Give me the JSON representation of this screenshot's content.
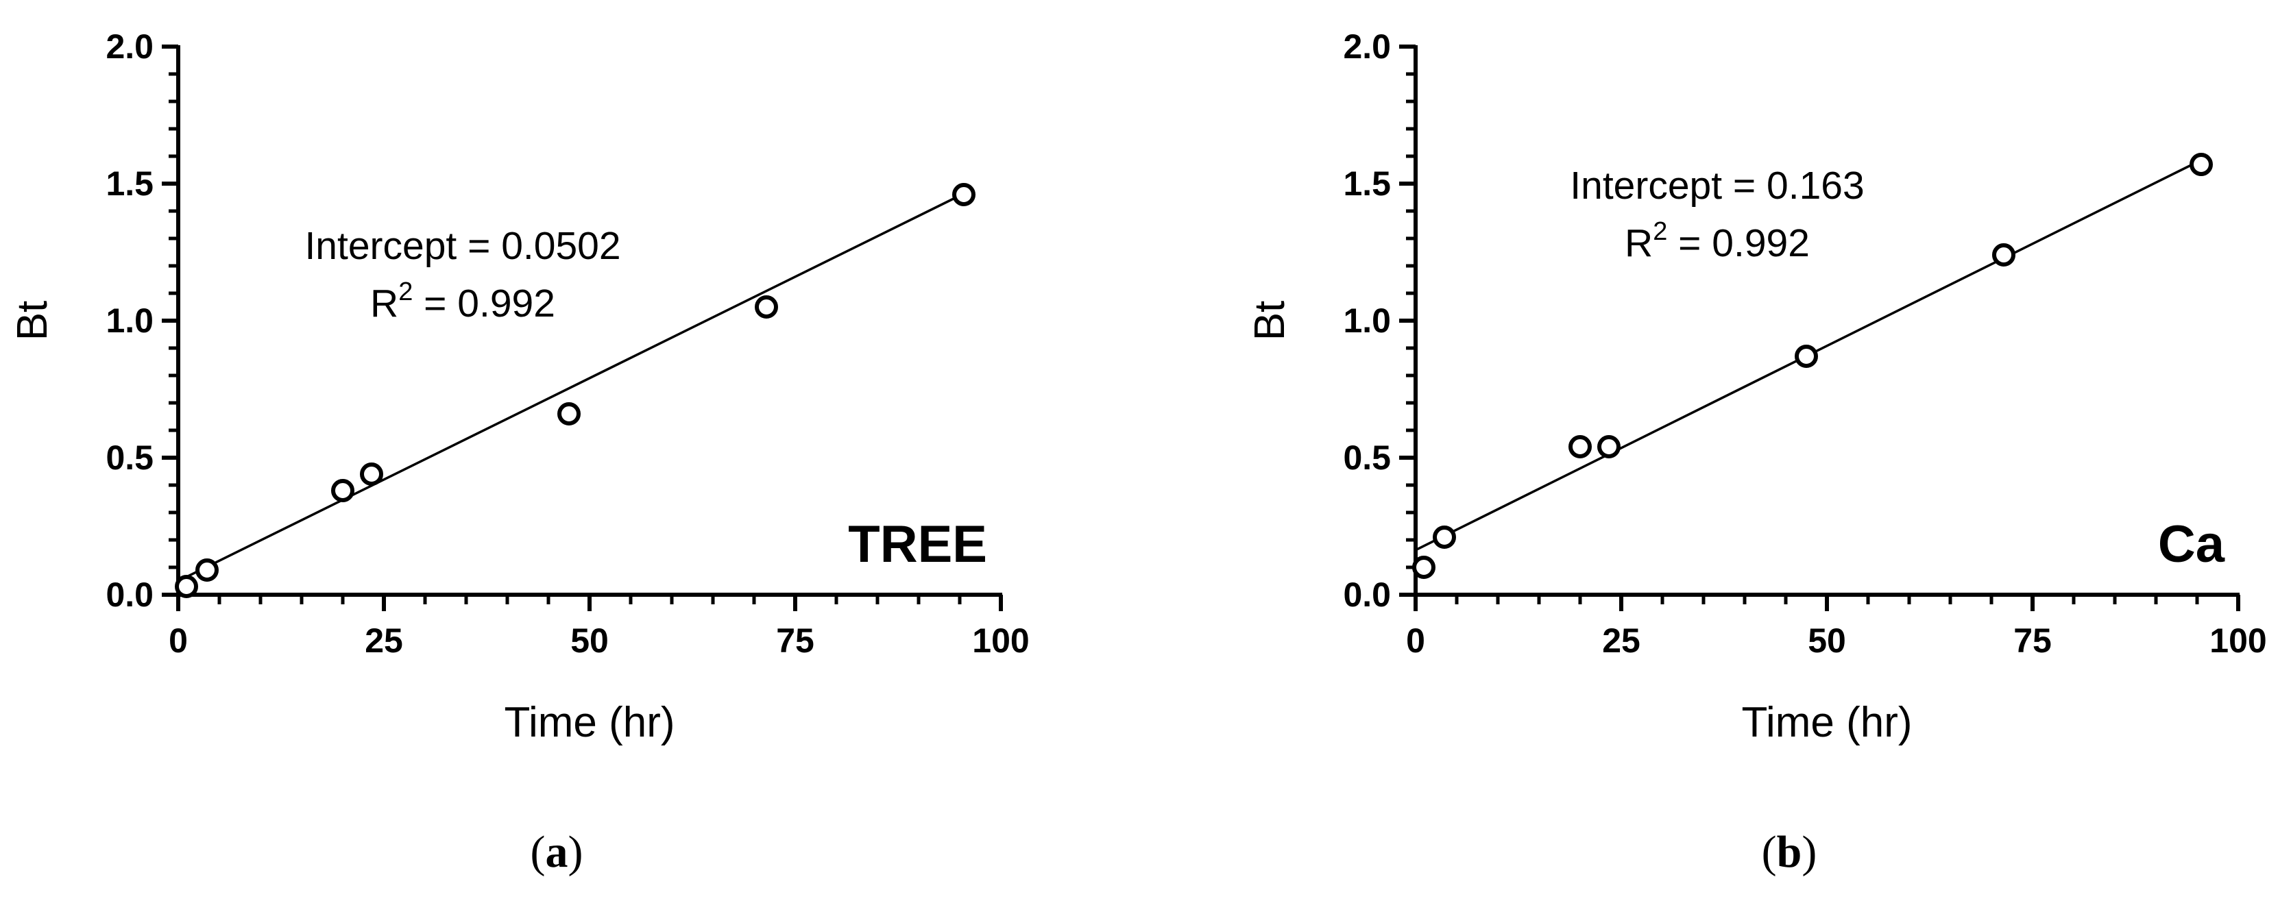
{
  "chart_data": [
    {
      "type": "scatter",
      "panel_caption": "a",
      "panel_label": "TREE",
      "xlabel": "Time (hr)",
      "ylabel": "Bt",
      "xlim": [
        0,
        100
      ],
      "ylim": [
        0,
        2.0
      ],
      "x_ticks": [
        "0",
        "25",
        "50",
        "75",
        "100"
      ],
      "y_ticks": [
        "0.0",
        "0.5",
        "1.0",
        "1.5",
        "2.0"
      ],
      "grid": false,
      "series": [
        {
          "x": [
            1,
            3.5,
            20,
            23.5,
            47.5,
            71.5,
            95.5
          ],
          "y": [
            0.03,
            0.09,
            0.38,
            0.44,
            0.66,
            1.05,
            1.46
          ],
          "marker": "open-circle"
        }
      ],
      "fit_line": {
        "intercept": 0.0502,
        "slope": 0.0148,
        "x_range": [
          0,
          96
        ]
      },
      "annotation": {
        "intercept_text": "Intercept = 0.0502",
        "r2_base": "R",
        "r2_exp": "2",
        "r2_value": " = 0.992"
      },
      "colors": {
        "ink": "#000000"
      }
    },
    {
      "type": "scatter",
      "panel_caption": "b",
      "panel_label": "Ca",
      "xlabel": "Time (hr)",
      "ylabel": "Bt",
      "xlim": [
        0,
        100
      ],
      "ylim": [
        0,
        2.0
      ],
      "x_ticks": [
        "0",
        "25",
        "50",
        "75",
        "100"
      ],
      "y_ticks": [
        "0.0",
        "0.5",
        "1.0",
        "1.5",
        "2.0"
      ],
      "grid": false,
      "series": [
        {
          "x": [
            1,
            3.5,
            20,
            23.5,
            47.5,
            71.5,
            95.5
          ],
          "y": [
            0.1,
            0.21,
            0.54,
            0.54,
            0.87,
            1.24,
            1.57
          ],
          "marker": "open-circle"
        }
      ],
      "fit_line": {
        "intercept": 0.163,
        "slope": 0.0149,
        "x_range": [
          0,
          96
        ]
      },
      "annotation": {
        "intercept_text": "Intercept = 0.163",
        "r2_base": "R",
        "r2_exp": "2",
        "r2_value": " = 0.992"
      },
      "colors": {
        "ink": "#000000"
      }
    }
  ]
}
